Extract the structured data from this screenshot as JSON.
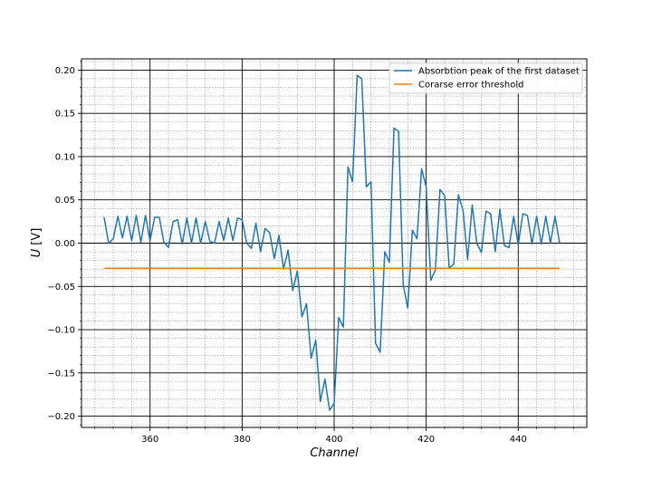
{
  "chart_data": {
    "type": "line",
    "xlabel": "Channel",
    "ylabel_var": "U",
    "ylabel_unit": " [V]",
    "xlim": [
      345.1,
      454.9
    ],
    "ylim": [
      -0.213,
      0.213
    ],
    "x_ticks": [
      360,
      380,
      400,
      420,
      440
    ],
    "y_ticks": [
      -0.2,
      -0.15,
      -0.1,
      -0.05,
      0.0,
      0.05,
      0.1,
      0.15,
      0.2
    ],
    "x_tick_labels": [
      "360",
      "380",
      "400",
      "420",
      "440"
    ],
    "y_tick_labels": [
      "−0.20",
      "−0.15",
      "−0.10",
      "−0.05",
      "0.00",
      "0.05",
      "0.10",
      "0.15",
      "0.20"
    ],
    "grid": true,
    "legend_position": "top-right",
    "series": [
      {
        "name": "Absorbtion peak of the first dataset",
        "color": "#1f77b4",
        "x_start": 350,
        "x_step": 1,
        "values": [
          0.03,
          0.0,
          0.005,
          0.031,
          0.006,
          0.031,
          0.003,
          0.032,
          0.001,
          0.032,
          0.003,
          0.03,
          0.03,
          0.001,
          -0.005,
          0.025,
          0.027,
          -0.001,
          0.029,
          0.0,
          0.029,
          0.0,
          0.025,
          0.002,
          0.0,
          0.025,
          0.003,
          0.029,
          0.003,
          0.029,
          0.027,
          0.0,
          -0.006,
          0.023,
          -0.01,
          0.017,
          0.012,
          -0.018,
          0.009,
          -0.03,
          -0.008,
          -0.055,
          -0.032,
          -0.085,
          -0.07,
          -0.133,
          -0.112,
          -0.183,
          -0.157,
          -0.193,
          -0.185,
          -0.086,
          -0.097,
          0.088,
          0.071,
          0.194,
          0.19,
          0.065,
          0.071,
          -0.116,
          -0.126,
          -0.01,
          -0.022,
          0.133,
          0.129,
          -0.048,
          -0.075,
          0.015,
          0.005,
          0.086,
          0.065,
          -0.043,
          -0.031,
          0.062,
          0.055,
          -0.029,
          -0.024,
          0.056,
          0.038,
          -0.019,
          0.044,
          0.0,
          -0.011,
          0.037,
          0.034,
          -0.01,
          0.039,
          -0.003,
          -0.005,
          0.031,
          -0.002,
          0.034,
          0.032,
          -0.001,
          0.031,
          -0.001,
          0.031,
          0.0,
          0.031,
          0.0
        ]
      },
      {
        "name": "Corarse error threshold",
        "color": "#ff7f0e",
        "x": [
          350,
          449
        ],
        "values": [
          -0.029,
          -0.029
        ]
      }
    ]
  }
}
